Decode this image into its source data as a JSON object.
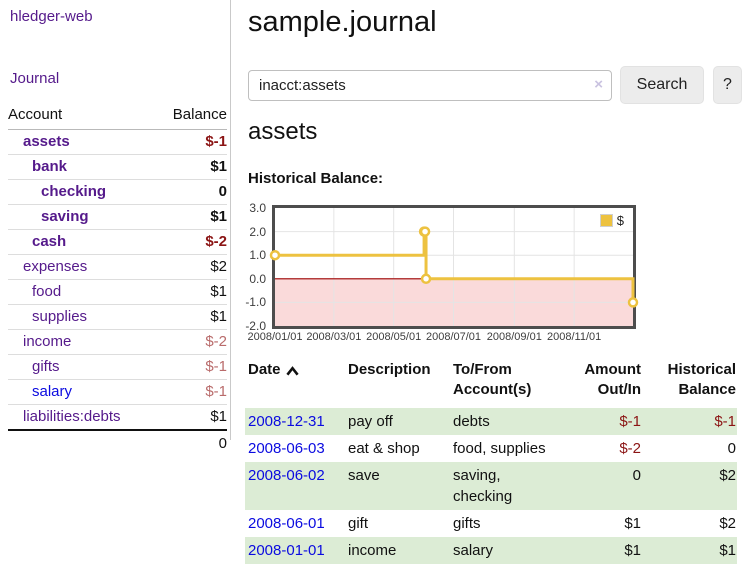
{
  "app": {
    "brand": "hledger-web",
    "nav_journal": "Journal"
  },
  "sidebar": {
    "headers": {
      "account": "Account",
      "balance": "Balance"
    },
    "accounts": [
      {
        "name": "assets",
        "depth": 1,
        "strong": true,
        "link": "purple",
        "balance": "$-1",
        "tone": "neg"
      },
      {
        "name": "bank",
        "depth": 2,
        "strong": true,
        "link": "purple",
        "balance": "$1",
        "tone": "pos"
      },
      {
        "name": "checking",
        "depth": 3,
        "strong": true,
        "link": "purple",
        "balance": "0",
        "tone": "pos"
      },
      {
        "name": "saving",
        "depth": 3,
        "strong": true,
        "link": "purple",
        "balance": "$1",
        "tone": "pos"
      },
      {
        "name": "cash",
        "depth": 2,
        "strong": true,
        "link": "purple",
        "balance": "$-2",
        "tone": "neg"
      },
      {
        "name": "expenses",
        "depth": 1,
        "strong": false,
        "link": "purple",
        "balance": "$2",
        "tone": "pos"
      },
      {
        "name": "food",
        "depth": 2,
        "strong": false,
        "link": "purple",
        "balance": "$1",
        "tone": "pos"
      },
      {
        "name": "supplies",
        "depth": 2,
        "strong": false,
        "link": "purple",
        "balance": "$1",
        "tone": "pos"
      },
      {
        "name": "income",
        "depth": 1,
        "strong": false,
        "link": "purple",
        "balance": "$-2",
        "tone": "rose"
      },
      {
        "name": "gifts",
        "depth": 2,
        "strong": false,
        "link": "purple",
        "balance": "$-1",
        "tone": "rose"
      },
      {
        "name": "salary",
        "depth": 2,
        "strong": false,
        "link": "blue",
        "balance": "$-1",
        "tone": "rose"
      },
      {
        "name": "liabilities:debts",
        "depth": 1,
        "strong": false,
        "link": "purple",
        "balance": "$1",
        "tone": "pos"
      }
    ],
    "total": "0"
  },
  "main": {
    "title": "sample.journal",
    "search": {
      "query": "inacct:assets",
      "clear": "×",
      "button": "Search",
      "help": "?"
    },
    "account_heading": "assets",
    "chart_title": "Historical Balance:"
  },
  "chart_data": {
    "type": "line",
    "title": "Historical Balance:",
    "step": true,
    "x_range": [
      "2008-01-01",
      "2008-12-31"
    ],
    "ylim": [
      -2,
      3
    ],
    "y_ticks": [
      "3.0",
      "2.0",
      "1.0",
      "0.0",
      "-1.0",
      "-2.0"
    ],
    "x_ticks": [
      "2008/01/01",
      "2008/03/01",
      "2008/05/01",
      "2008/07/01",
      "2008/09/01",
      "2008/11/01"
    ],
    "series": [
      {
        "name": "$",
        "color": "#edc240",
        "points": [
          [
            "2008-01-01",
            1
          ],
          [
            "2008-06-01",
            2
          ],
          [
            "2008-06-02",
            2
          ],
          [
            "2008-06-03",
            0
          ],
          [
            "2008-12-31",
            -1
          ]
        ]
      }
    ],
    "legend": {
      "position": "top-right",
      "label": "$"
    },
    "grid_color": "#e4e4e4",
    "negative_region_color": "#fadada",
    "zero_line_color": "#a00000"
  },
  "register": {
    "headers": {
      "date": "Date",
      "description": "Description",
      "to_from": "To/From Account(s)",
      "amount": "Amount Out/In",
      "balance": "Historical Balance"
    },
    "rows": [
      {
        "date": "2008-12-31",
        "description": "pay off",
        "to_from": "debts",
        "amount": "$-1",
        "amount_tone": "neg",
        "balance": "$-1",
        "balance_tone": "neg",
        "stripe": true
      },
      {
        "date": "2008-06-03",
        "description": "eat & shop",
        "to_from": "food, supplies",
        "amount": "$-2",
        "amount_tone": "neg",
        "balance": "0",
        "balance_tone": "pos",
        "stripe": false
      },
      {
        "date": "2008-06-02",
        "description": "save",
        "to_from": "saving, checking",
        "amount": "0",
        "amount_tone": "pos",
        "balance": "$2",
        "balance_tone": "pos",
        "stripe": true
      },
      {
        "date": "2008-06-01",
        "description": "gift",
        "to_from": "gifts",
        "amount": "$1",
        "amount_tone": "pos",
        "balance": "$2",
        "balance_tone": "pos",
        "stripe": false
      },
      {
        "date": "2008-01-01",
        "description": "income",
        "to_from": "salary",
        "amount": "$1",
        "amount_tone": "pos",
        "balance": "$1",
        "balance_tone": "pos",
        "stripe": true
      }
    ]
  }
}
